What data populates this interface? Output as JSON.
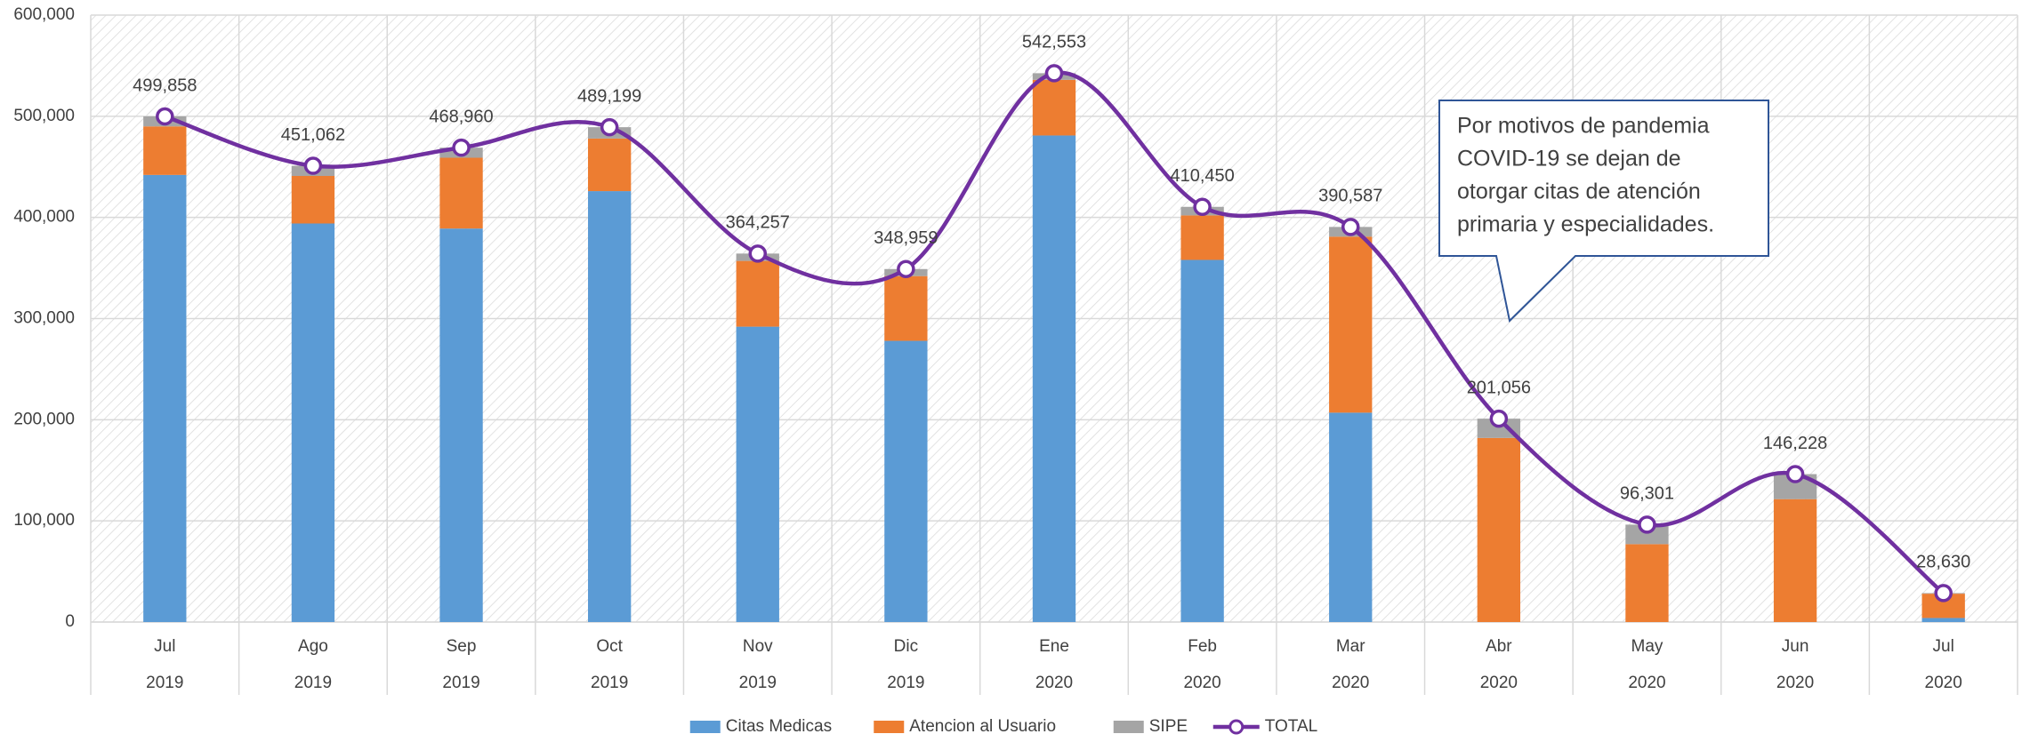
{
  "chart_data": {
    "type": "bar",
    "stacked": true,
    "categories": [
      "Jul",
      "Ago",
      "Sep",
      "Oct",
      "Nov",
      "Dic",
      "Ene",
      "Feb",
      "Mar",
      "Abr",
      "May",
      "Jun",
      "Jul"
    ],
    "category_groups": [
      "2019",
      "2019",
      "2019",
      "2019",
      "2019",
      "2019",
      "2020",
      "2020",
      "2020",
      "2020",
      "2020",
      "2020",
      "2020"
    ],
    "series": [
      {
        "name": "Citas Medicas",
        "color": "#5b9bd5",
        "values": [
          442000,
          394000,
          389000,
          426000,
          292000,
          278000,
          481000,
          358000,
          207000,
          0,
          0,
          0,
          4000
        ]
      },
      {
        "name": "Atencion al Usuario",
        "color": "#ed7d31",
        "values": [
          48000,
          47000,
          70000,
          52000,
          65000,
          64000,
          55000,
          44000,
          174000,
          182000,
          77000,
          121500,
          24000
        ]
      },
      {
        "name": "SIPE",
        "color": "#a5a5a5",
        "values": [
          9858,
          10062,
          9960,
          11199,
          7257,
          6959,
          6553,
          8450,
          9587,
          19056,
          19301,
          24728,
          630
        ]
      },
      {
        "name": "TOTAL",
        "color": "#7030a0",
        "type": "line",
        "values": [
          499858,
          451062,
          468960,
          489199,
          364257,
          348959,
          542553,
          410450,
          390587,
          201056,
          96301,
          146228,
          28630
        ],
        "value_labels": [
          "499,858",
          "451,062",
          "468,960",
          "489,199",
          "364,257",
          "348,959",
          "542,553",
          "410,450",
          "390,587",
          "201,056",
          "96,301",
          "146,228",
          "28,630"
        ]
      }
    ],
    "ylim": [
      0,
      600000
    ],
    "yticks": [
      0,
      {
        "value": 100000,
        "label": "100,000"
      },
      {
        "value": 200000,
        "label": "200,000"
      },
      {
        "value": 300000,
        "label": "300,000"
      },
      {
        "value": 400000,
        "label": "400,000"
      },
      {
        "value": 500000,
        "label": "500,000"
      },
      {
        "value": 600000,
        "label": "600,000"
      }
    ],
    "grid": true,
    "legend": "bottom",
    "annotation": [
      "Por motivos de pandemia",
      "COVID-19 se dejan de",
      "otorgar citas de atención",
      "primaria y especialidades."
    ]
  }
}
